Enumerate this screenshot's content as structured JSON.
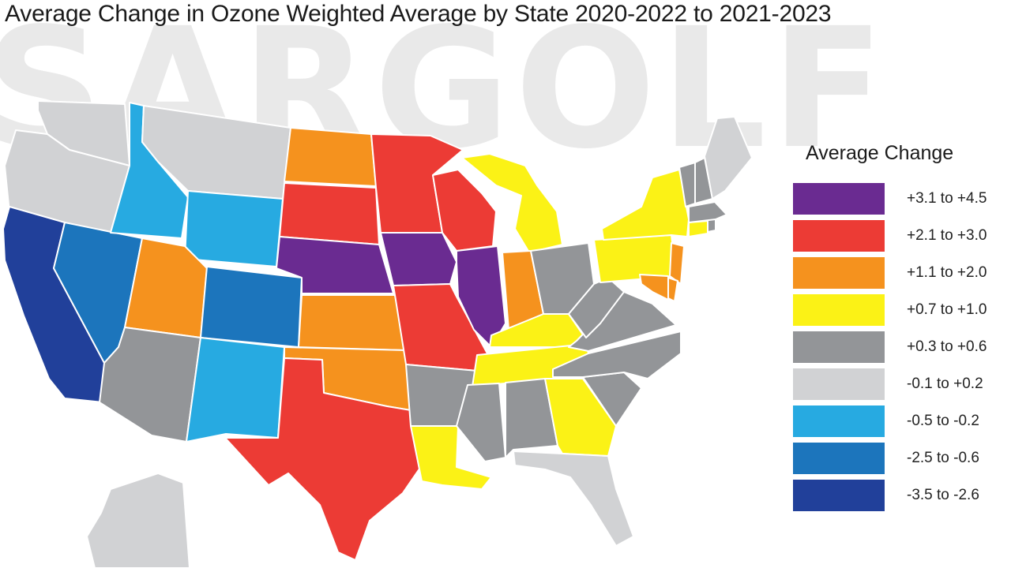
{
  "title": "Average Change in Ozone Weighted Average by State 2020-2022 to 2021-2023",
  "watermark": "SARGOLF",
  "legend": {
    "title": "Average Change",
    "bins": [
      {
        "label": "+3.1 to +4.5",
        "color": "#6a2b91"
      },
      {
        "label": "+2.1 to +3.0",
        "color": "#ec3b35"
      },
      {
        "label": "+1.1 to +2.0",
        "color": "#f5921e"
      },
      {
        "label": "+0.7 to +1.0",
        "color": "#fbf216"
      },
      {
        "label": "+0.3 to +0.6",
        "color": "#939598"
      },
      {
        "label": "-0.1 to +0.2",
        "color": "#d1d2d4"
      },
      {
        "label": "-0.5 to -0.2",
        "color": "#27aae1"
      },
      {
        "label": "-2.5 to -0.6",
        "color": "#1c75bc"
      },
      {
        "label": "-3.5 to -2.6",
        "color": "#21409a"
      }
    ]
  },
  "states": [
    {
      "id": "WA",
      "bin": 5
    },
    {
      "id": "OR",
      "bin": 5
    },
    {
      "id": "CA",
      "bin": 8
    },
    {
      "id": "NV",
      "bin": 7
    },
    {
      "id": "ID",
      "bin": 6
    },
    {
      "id": "MT",
      "bin": 5
    },
    {
      "id": "WY",
      "bin": 6
    },
    {
      "id": "UT",
      "bin": 2
    },
    {
      "id": "AZ",
      "bin": 4
    },
    {
      "id": "CO",
      "bin": 7
    },
    {
      "id": "NM",
      "bin": 6
    },
    {
      "id": "ND",
      "bin": 2
    },
    {
      "id": "SD",
      "bin": 1
    },
    {
      "id": "NE",
      "bin": 0
    },
    {
      "id": "KS",
      "bin": 2
    },
    {
      "id": "OK",
      "bin": 2
    },
    {
      "id": "TX",
      "bin": 1
    },
    {
      "id": "MN",
      "bin": 1
    },
    {
      "id": "IA",
      "bin": 0
    },
    {
      "id": "MO",
      "bin": 1
    },
    {
      "id": "AR",
      "bin": 4
    },
    {
      "id": "LA",
      "bin": 3
    },
    {
      "id": "WI",
      "bin": 1
    },
    {
      "id": "IL",
      "bin": 0
    },
    {
      "id": "MI",
      "bin": 3
    },
    {
      "id": "IN",
      "bin": 2
    },
    {
      "id": "OH",
      "bin": 4
    },
    {
      "id": "KY",
      "bin": 3
    },
    {
      "id": "TN",
      "bin": 3
    },
    {
      "id": "MS",
      "bin": 4
    },
    {
      "id": "AL",
      "bin": 4
    },
    {
      "id": "GA",
      "bin": 3
    },
    {
      "id": "FL",
      "bin": 5
    },
    {
      "id": "SC",
      "bin": 4
    },
    {
      "id": "NC",
      "bin": 4
    },
    {
      "id": "VA",
      "bin": 4
    },
    {
      "id": "WV",
      "bin": 4
    },
    {
      "id": "PA",
      "bin": 3
    },
    {
      "id": "NY",
      "bin": 3
    },
    {
      "id": "NJ",
      "bin": 2
    },
    {
      "id": "DE",
      "bin": 2
    },
    {
      "id": "MD",
      "bin": 2
    },
    {
      "id": "CT",
      "bin": 3
    },
    {
      "id": "RI",
      "bin": 4
    },
    {
      "id": "MA",
      "bin": 4
    },
    {
      "id": "VT",
      "bin": 4
    },
    {
      "id": "NH",
      "bin": 4
    },
    {
      "id": "ME",
      "bin": 5
    },
    {
      "id": "AK",
      "bin": 5
    }
  ]
}
